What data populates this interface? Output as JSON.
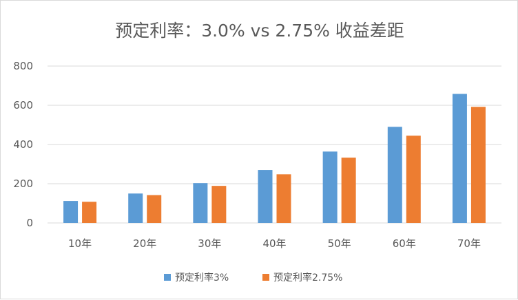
{
  "chart_data": {
    "type": "bar",
    "title": "预定利率：3.0% vs  2.75% 收益差距",
    "categories": [
      "10年",
      "20年",
      "30年",
      "40年",
      "50年",
      "60年",
      "70年"
    ],
    "series": [
      {
        "name": "预定利率3%",
        "color": "#5b9bd5",
        "values": [
          112,
          150,
          203,
          270,
          364,
          490,
          658
        ]
      },
      {
        "name": "预定利率2.75%",
        "color": "#ed7d31",
        "values": [
          108,
          142,
          189,
          248,
          333,
          445,
          592
        ]
      }
    ],
    "yticks": [
      "0",
      "200",
      "400",
      "600",
      "800"
    ],
    "ylim": [
      0,
      800
    ],
    "grid": true,
    "legend": "bottom"
  }
}
